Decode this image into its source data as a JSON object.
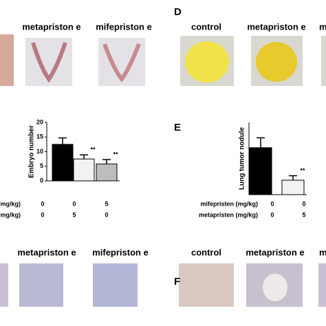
{
  "figure": {
    "panel_labels": [
      "D",
      "E",
      "F"
    ],
    "top_labels_left": [
      "metapriston e",
      "mifepriston e"
    ],
    "top_labels_right": [
      "control",
      "metapriston e",
      "m"
    ],
    "bottom_labels_left": [
      "metapriston e",
      "mifepriston e"
    ],
    "bottom_labels_right": [
      "control",
      "metapriston e",
      "m"
    ]
  },
  "chart_data": [
    {
      "type": "bar",
      "ylabel": "Embryo number",
      "values": [
        12.5,
        7.5,
        5.8
      ],
      "errors": [
        2.2,
        1.4,
        1.5
      ],
      "colors": [
        "#000000",
        "#f2f2f2",
        "#bdbdbd"
      ],
      "annotations": [
        null,
        "**",
        "**"
      ],
      "ylim": [
        0,
        20
      ],
      "yticks": [
        0,
        5,
        10,
        15,
        20
      ],
      "rows": [
        {
          "name": "(mg/kg)",
          "values": [
            0,
            0,
            5
          ]
        },
        {
          "name": "(mg/kg)",
          "values": [
            0,
            5,
            0
          ]
        }
      ]
    },
    {
      "type": "bar",
      "ylabel": "Lung tumor nodule",
      "values": [
        52,
        16
      ],
      "errors": [
        11,
        5
      ],
      "colors": [
        "#000000",
        "#f2f2f2"
      ],
      "annotations": [
        null,
        "**"
      ],
      "ylim": [
        0,
        80
      ],
      "rows": [
        {
          "name": "mifepristen (mg/kg)",
          "values": [
            0,
            0
          ]
        },
        {
          "name": "metapristen (mg/kg)",
          "values": [
            0,
            5
          ]
        }
      ]
    }
  ]
}
